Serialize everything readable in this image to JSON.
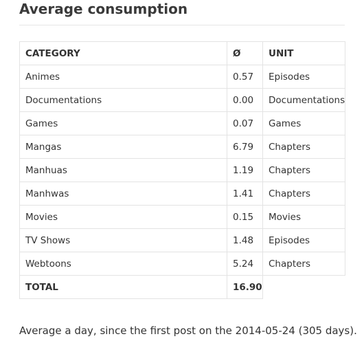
{
  "heading": "Average consumption",
  "table": {
    "headers": [
      "CATEGORY",
      "Ø",
      "UNIT"
    ],
    "rows": [
      {
        "category": "Animes",
        "avg": "0.57",
        "unit": "Episodes"
      },
      {
        "category": "Documentations",
        "avg": "0.00",
        "unit": "Documentations"
      },
      {
        "category": "Games",
        "avg": "0.07",
        "unit": "Games"
      },
      {
        "category": "Mangas",
        "avg": "6.79",
        "unit": "Chapters"
      },
      {
        "category": "Manhuas",
        "avg": "1.19",
        "unit": "Chapters"
      },
      {
        "category": "Manhwas",
        "avg": "1.41",
        "unit": "Chapters"
      },
      {
        "category": "Movies",
        "avg": "0.15",
        "unit": "Movies"
      },
      {
        "category": "TV Shows",
        "avg": "1.48",
        "unit": "Episodes"
      },
      {
        "category": "Webtoons",
        "avg": "5.24",
        "unit": "Chapters"
      }
    ],
    "total": {
      "label": "TOTAL",
      "value": "16.90"
    }
  },
  "footnote": "Average a day, since the first post on the 2014-05-24 (305 days)."
}
